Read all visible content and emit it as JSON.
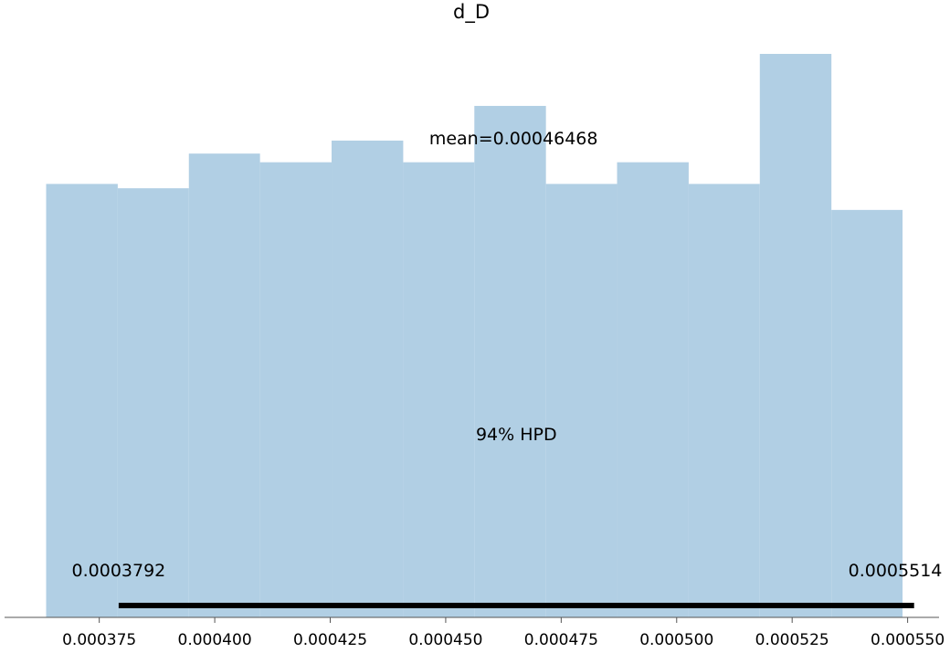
{
  "chart_data": {
    "type": "bar",
    "title": "d_D",
    "xlabel": "",
    "ylabel": "",
    "bin_edges": [
      0.0003635,
      0.000379,
      0.0003944,
      0.0004098,
      0.0004253,
      0.0004408,
      0.0004562,
      0.0004717,
      0.0004871,
      0.0005026,
      0.000518,
      0.0005335,
      0.0005489
    ],
    "values": [
      100,
      99,
      107,
      105,
      110,
      105,
      118,
      100,
      105,
      100,
      130,
      94
    ],
    "xlim": [
      0.0003545,
      0.0005568
    ],
    "ylim": [
      0,
      130
    ],
    "x_ticks": [
      0.000375,
      0.0004,
      0.000425,
      0.00045,
      0.000475,
      0.0005,
      0.000525,
      0.00055
    ],
    "x_tick_labels": [
      "0.000375",
      "0.000400",
      "0.000425",
      "0.000450",
      "0.000475",
      "0.000500",
      "0.000525",
      "0.000550"
    ],
    "y_axis_visible": false,
    "grid": false,
    "bar_color": "#b1cfe4",
    "annotations": {
      "mean_label": "mean=0.00046468",
      "hpd_label": "94% HPD",
      "hpd_low": 0.0003792,
      "hpd_high": 0.0005514,
      "hpd_low_label": "0.0003792",
      "hpd_high_label": "0.0005514",
      "hpd_line_color": "#000000"
    }
  }
}
